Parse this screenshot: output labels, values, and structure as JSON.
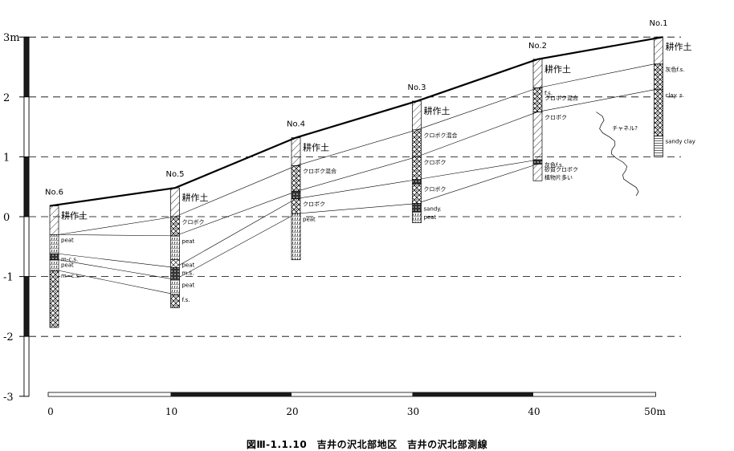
{
  "caption": "図Ⅲ-1.1.10　吉井の沢北部地区　吉井の沢北部測線",
  "axes": {
    "y_labels": [
      {
        "text": "3m",
        "value": 3
      },
      {
        "text": "2",
        "value": 2
      },
      {
        "text": "1",
        "value": 1
      },
      {
        "text": "0",
        "value": 0
      },
      {
        "text": "-1",
        "value": -1
      },
      {
        "text": "-2",
        "value": -2
      },
      {
        "text": "-3",
        "value": -3
      }
    ],
    "x_labels": [
      {
        "text": "0",
        "value": 0
      },
      {
        "text": "10",
        "value": 10
      },
      {
        "text": "20",
        "value": 20
      },
      {
        "text": "30",
        "value": 30
      },
      {
        "text": "40",
        "value": 40
      },
      {
        "text": "50m",
        "value": 50
      }
    ]
  },
  "boreholes": [
    {
      "name": "No.6",
      "x": 0,
      "top": 0.18,
      "bottom": -1.85,
      "layers": [
        {
          "from": 0.18,
          "to": -0.3,
          "pattern": "hatch",
          "label": "耕作土",
          "big": true
        },
        {
          "from": -0.3,
          "to": -0.62,
          "pattern": "peat",
          "label": "peat"
        },
        {
          "from": -0.62,
          "to": -0.72,
          "pattern": "dark",
          "label": "m-c.s."
        },
        {
          "from": -0.72,
          "to": -0.9,
          "pattern": "peat",
          "label": "peat"
        },
        {
          "from": -0.9,
          "to": -1.85,
          "pattern": "sand",
          "label": "m~c.s."
        }
      ]
    },
    {
      "name": "No.5",
      "x": 10,
      "top": 0.48,
      "bottom": -1.52,
      "layers": [
        {
          "from": 0.48,
          "to": 0.0,
          "pattern": "hatch",
          "label": "耕作土",
          "big": true
        },
        {
          "from": 0.0,
          "to": -0.32,
          "pattern": "sand",
          "label": "クロボク"
        },
        {
          "from": -0.32,
          "to": -0.72,
          "pattern": "peat",
          "label": "peat"
        },
        {
          "from": -0.72,
          "to": -0.85,
          "pattern": "cross",
          "label": "peat"
        },
        {
          "from": -0.85,
          "to": -1.05,
          "pattern": "dark",
          "label": "m.s."
        },
        {
          "from": -1.05,
          "to": -1.3,
          "pattern": "peat",
          "label": "peat"
        },
        {
          "from": -1.3,
          "to": -1.52,
          "pattern": "sand",
          "label": "f.s."
        }
      ]
    },
    {
      "name": "No.4",
      "x": 20,
      "top": 1.32,
      "bottom": -0.72,
      "layers": [
        {
          "from": 1.32,
          "to": 0.85,
          "pattern": "hatch",
          "label": "耕作土",
          "big": true
        },
        {
          "from": 0.85,
          "to": 0.42,
          "pattern": "sand",
          "label": "クロボク混合"
        },
        {
          "from": 0.42,
          "to": 0.3,
          "pattern": "dark",
          "label": ""
        },
        {
          "from": 0.3,
          "to": 0.05,
          "pattern": "sand",
          "label": "クロボク"
        },
        {
          "from": 0.05,
          "to": -0.72,
          "pattern": "peat",
          "label": "peat"
        }
      ]
    },
    {
      "name": "No.3",
      "x": 30,
      "top": 1.93,
      "bottom": -0.1,
      "layers": [
        {
          "from": 1.93,
          "to": 1.45,
          "pattern": "hatch",
          "label": "耕作土",
          "big": true
        },
        {
          "from": 1.45,
          "to": 1.0,
          "pattern": "sand",
          "label": "クロボク混合"
        },
        {
          "from": 1.0,
          "to": 0.62,
          "pattern": "sand",
          "label": "クロボク"
        },
        {
          "from": 0.62,
          "to": 0.55,
          "pattern": "dark",
          "label": ""
        },
        {
          "from": 0.55,
          "to": 0.22,
          "pattern": "sand",
          "label": "クロボク"
        },
        {
          "from": 0.22,
          "to": 0.08,
          "pattern": "dark",
          "label": "sandy."
        },
        {
          "from": 0.08,
          "to": -0.1,
          "pattern": "peat",
          "label": "peat"
        }
      ]
    },
    {
      "name": "No.2",
      "x": 40,
      "top": 2.63,
      "bottom": 0.6,
      "layers": [
        {
          "from": 2.63,
          "to": 2.15,
          "pattern": "hatch",
          "label": "耕作土",
          "big": true
        },
        {
          "from": 2.15,
          "to": 1.75,
          "pattern": "sand",
          "label": "f.s."
        },
        {
          "from": 1.75,
          "to": 0.95,
          "pattern": "hatch",
          "label": "クロボク"
        },
        {
          "from": 0.95,
          "to": 0.88,
          "pattern": "dark",
          "label": "灰色f.s."
        },
        {
          "from": 0.88,
          "to": 0.6,
          "pattern": "hatch",
          "label": "砂質クロボク"
        }
      ]
    },
    {
      "name": "No.1",
      "x": 50,
      "top": 3.0,
      "bottom": 1.0,
      "layers": [
        {
          "from": 3.0,
          "to": 2.55,
          "pattern": "hatch",
          "label": "耕作土",
          "big": true
        },
        {
          "from": 2.55,
          "to": 2.12,
          "pattern": "sand",
          "label": "灰色f.s."
        },
        {
          "from": 2.12,
          "to": 1.35,
          "pattern": "sand",
          "label": "clay. s."
        },
        {
          "from": 1.35,
          "to": 1.0,
          "pattern": "lines",
          "label": "sandy clay"
        }
      ]
    }
  ],
  "extra_labels": [
    {
      "text": "クロボク混合",
      "x": 40,
      "y": 1.95
    },
    {
      "text": "植物片多い",
      "x": 40,
      "y": 0.62
    },
    {
      "text": "チャネル?",
      "x": 45.6,
      "y": 1.45
    }
  ],
  "correlation_lines": [
    [
      [
        0,
        -0.3
      ],
      [
        10,
        0.0
      ],
      [
        20,
        0.85
      ],
      [
        30,
        1.45
      ],
      [
        40,
        2.15
      ],
      [
        50,
        2.55
      ]
    ],
    [
      [
        0,
        -0.3
      ],
      [
        10,
        -0.32
      ],
      [
        20,
        0.42
      ],
      [
        30,
        1.0
      ],
      [
        40,
        1.75
      ],
      [
        50,
        2.12
      ]
    ],
    [
      [
        0,
        -0.62
      ],
      [
        10,
        -0.85
      ],
      [
        20,
        0.3
      ],
      [
        30,
        0.62
      ],
      [
        40,
        0.95
      ]
    ],
    [
      [
        0,
        -0.72
      ],
      [
        10,
        -1.05
      ],
      [
        20,
        0.05
      ],
      [
        30,
        0.22
      ],
      [
        40,
        0.88
      ]
    ],
    [
      [
        0,
        -0.9
      ],
      [
        10,
        -1.3
      ]
    ]
  ]
}
